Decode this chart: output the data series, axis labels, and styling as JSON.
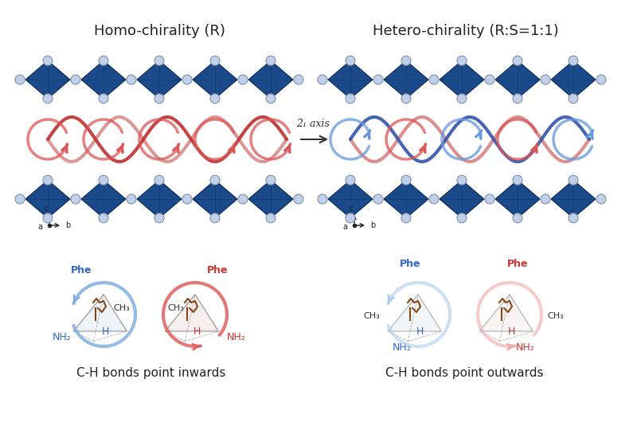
{
  "bg_color": "#ffffff",
  "title_left": "Homo-chirality (R)",
  "title_right": "Hetero-chirality (R:S=1:1)",
  "title_fontsize": 13,
  "arrow_label": "2₁ axis",
  "perovskite_color": "#1a4a8a",
  "perovskite_edge_color": "#0a2a5a",
  "ball_color": "#c0d0e8",
  "ball_edge_color": "#8090a8",
  "helix_color_red": "#e05050",
  "helix_color_blue": "#6090d0",
  "helix_color_dark_red": "#a03030",
  "curl_color_red": "#e06060",
  "curl_color_blue": "#80b0e0",
  "bottom_label_left": "C-H bonds point inwards",
  "bottom_label_right": "C-H bonds point outwards",
  "label_fontsize": 11,
  "phe_blue": "#3366cc",
  "phe_red": "#cc3333",
  "nh2_blue": "#3366cc",
  "nh2_red": "#cc3333",
  "ch3_color": "#333333",
  "h_blue": "#3366cc",
  "h_red": "#cc3333"
}
